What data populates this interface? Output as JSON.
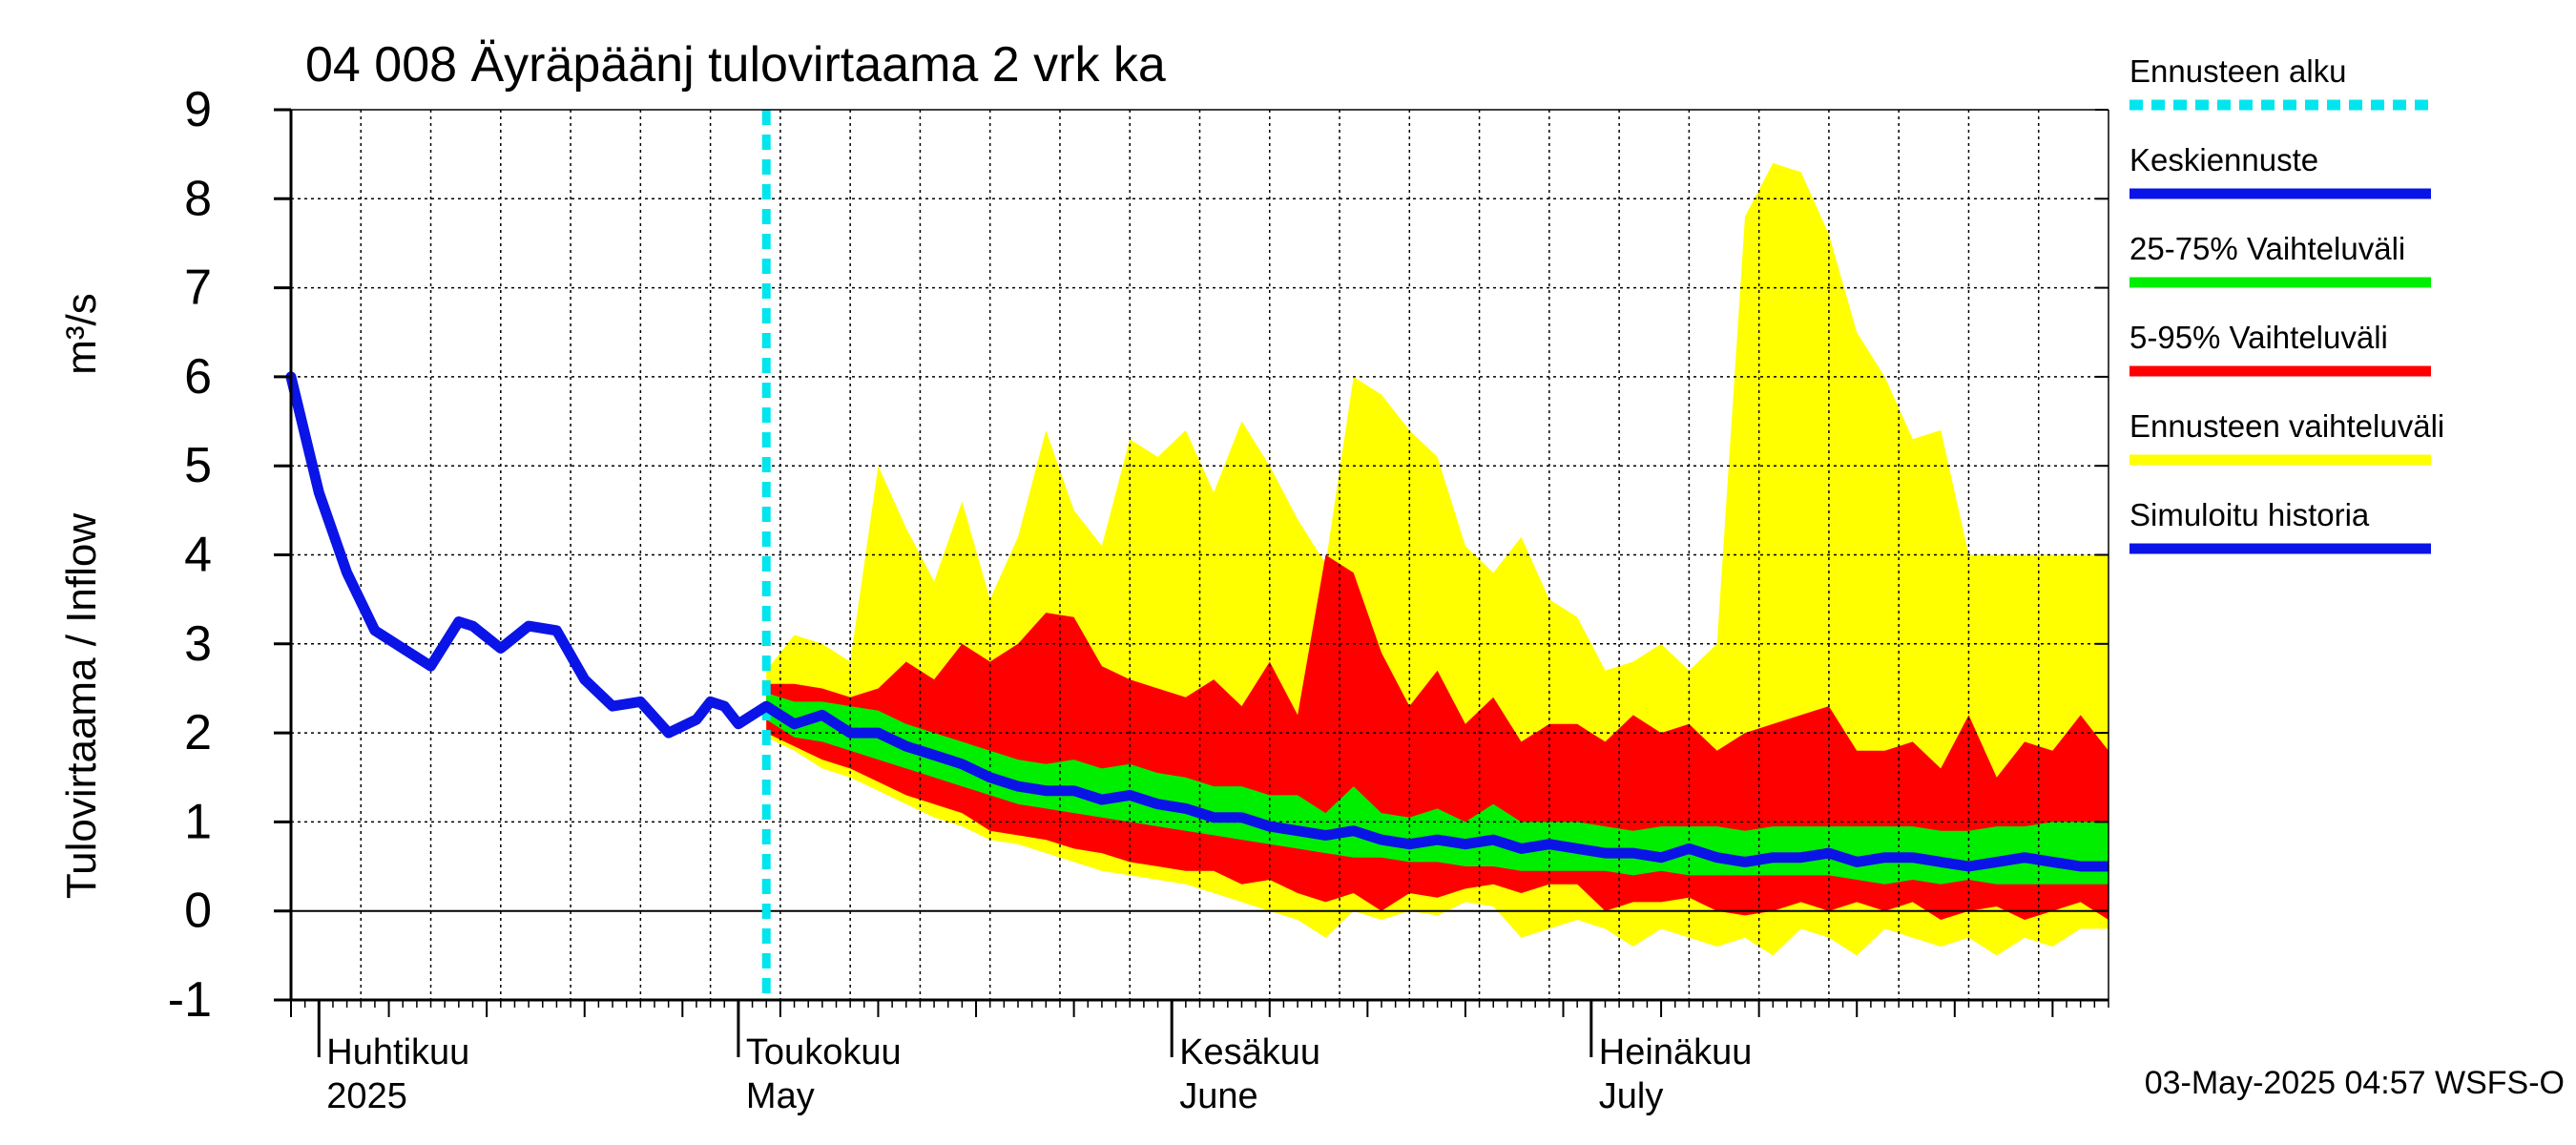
{
  "chart_data": {
    "type": "area",
    "title": "04 008 Äyräpäänj tulovirtaama 2 vrk ka",
    "ylabel": "Tulovirtaama / Inflow",
    "yunit": "m³/s",
    "ylim": [
      -1,
      9
    ],
    "yticks": [
      "-1",
      "0",
      "1",
      "2",
      "3",
      "4",
      "5",
      "6",
      "7",
      "8",
      "9"
    ],
    "x_start": "2025-03-30",
    "x_end": "2025-08-07",
    "grid": true,
    "month_labels": [
      {
        "fi": "Huhtikuu",
        "en": "2025",
        "date": "2025-04-01"
      },
      {
        "fi": "Toukokuu",
        "en": "May",
        "date": "2025-05-01"
      },
      {
        "fi": "Kesäkuu",
        "en": "June",
        "date": "2025-06-01"
      },
      {
        "fi": "Heinäkuu",
        "en": "July",
        "date": "2025-07-01"
      }
    ],
    "forecast_start": "2025-05-03",
    "legend_position": "right",
    "legend": [
      {
        "label": "Ennusteen alku",
        "color": "#00e5ee",
        "style": "dashed"
      },
      {
        "label": "Keskiennuste",
        "color": "#0a14e6",
        "style": "line"
      },
      {
        "label": "25-75% Vaihteluväli",
        "color": "#00ee00",
        "style": "line"
      },
      {
        "label": "5-95% Vaihteluväli",
        "color": "#ff0000",
        "style": "line"
      },
      {
        "label": "Ennusteen vaihteluväli",
        "color": "#ffff00",
        "style": "line"
      },
      {
        "label": "Simuloitu historia",
        "color": "#0a14e6",
        "style": "line"
      }
    ],
    "colors": {
      "history": "#0a14e6",
      "median": "#0a14e6",
      "band_25_75": "#00ee00",
      "band_5_95": "#ff0000",
      "band_full": "#ffff00",
      "forecast_start": "#00e5ee"
    },
    "history": {
      "x": [
        "2025-03-30",
        "2025-04-01",
        "2025-04-03",
        "2025-04-05",
        "2025-04-07",
        "2025-04-09",
        "2025-04-11",
        "2025-04-12",
        "2025-04-14",
        "2025-04-16",
        "2025-04-18",
        "2025-04-20",
        "2025-04-22",
        "2025-04-24",
        "2025-04-26",
        "2025-04-28",
        "2025-04-29",
        "2025-04-30",
        "2025-05-01",
        "2025-05-02",
        "2025-05-03"
      ],
      "y": [
        6.0,
        4.7,
        3.8,
        3.15,
        2.95,
        2.75,
        3.25,
        3.2,
        2.95,
        3.2,
        3.15,
        2.6,
        2.3,
        2.35,
        2.0,
        2.15,
        2.35,
        2.3,
        2.1,
        2.2,
        2.3
      ]
    },
    "forecast": {
      "x": [
        "2025-05-03",
        "2025-05-05",
        "2025-05-07",
        "2025-05-09",
        "2025-05-11",
        "2025-05-13",
        "2025-05-15",
        "2025-05-17",
        "2025-05-19",
        "2025-05-21",
        "2025-05-23",
        "2025-05-25",
        "2025-05-27",
        "2025-05-29",
        "2025-05-31",
        "2025-06-02",
        "2025-06-04",
        "2025-06-06",
        "2025-06-08",
        "2025-06-10",
        "2025-06-12",
        "2025-06-14",
        "2025-06-16",
        "2025-06-18",
        "2025-06-20",
        "2025-06-22",
        "2025-06-24",
        "2025-06-26",
        "2025-06-28",
        "2025-06-30",
        "2025-07-02",
        "2025-07-04",
        "2025-07-06",
        "2025-07-08",
        "2025-07-10",
        "2025-07-12",
        "2025-07-14",
        "2025-07-16",
        "2025-07-18",
        "2025-07-20",
        "2025-07-22",
        "2025-07-24",
        "2025-07-26",
        "2025-07-28",
        "2025-07-30",
        "2025-08-01",
        "2025-08-03",
        "2025-08-05",
        "2025-08-07"
      ],
      "median": [
        2.3,
        2.1,
        2.2,
        2.0,
        2.0,
        1.85,
        1.75,
        1.65,
        1.5,
        1.4,
        1.35,
        1.35,
        1.25,
        1.3,
        1.2,
        1.15,
        1.05,
        1.05,
        0.95,
        0.9,
        0.85,
        0.9,
        0.8,
        0.75,
        0.8,
        0.75,
        0.8,
        0.7,
        0.75,
        0.7,
        0.65,
        0.65,
        0.6,
        0.7,
        0.6,
        0.55,
        0.6,
        0.6,
        0.65,
        0.55,
        0.6,
        0.6,
        0.55,
        0.5,
        0.55,
        0.6,
        0.55,
        0.5,
        0.5
      ],
      "p25": [
        2.15,
        1.95,
        1.9,
        1.8,
        1.7,
        1.6,
        1.5,
        1.4,
        1.3,
        1.2,
        1.15,
        1.1,
        1.05,
        1.0,
        0.95,
        0.9,
        0.85,
        0.8,
        0.75,
        0.7,
        0.65,
        0.6,
        0.6,
        0.55,
        0.55,
        0.5,
        0.5,
        0.45,
        0.45,
        0.45,
        0.45,
        0.4,
        0.45,
        0.4,
        0.4,
        0.4,
        0.4,
        0.4,
        0.4,
        0.35,
        0.3,
        0.35,
        0.3,
        0.35,
        0.3,
        0.3,
        0.3,
        0.3,
        0.3
      ],
      "p75": [
        2.45,
        2.35,
        2.35,
        2.3,
        2.25,
        2.1,
        2.0,
        1.9,
        1.8,
        1.7,
        1.65,
        1.7,
        1.6,
        1.65,
        1.55,
        1.5,
        1.4,
        1.4,
        1.3,
        1.3,
        1.1,
        1.4,
        1.1,
        1.05,
        1.15,
        1.0,
        1.2,
        1.0,
        1.0,
        1.0,
        0.95,
        0.9,
        0.95,
        0.95,
        0.95,
        0.9,
        0.95,
        0.95,
        0.95,
        0.95,
        0.95,
        0.95,
        0.9,
        0.9,
        0.95,
        0.95,
        1.0,
        1.0,
        1.0
      ],
      "p5": [
        2.0,
        1.85,
        1.7,
        1.6,
        1.45,
        1.3,
        1.2,
        1.1,
        0.9,
        0.85,
        0.8,
        0.7,
        0.65,
        0.55,
        0.5,
        0.45,
        0.45,
        0.3,
        0.35,
        0.2,
        0.1,
        0.2,
        0.0,
        0.2,
        0.15,
        0.25,
        0.3,
        0.2,
        0.3,
        0.3,
        0.0,
        0.1,
        0.1,
        0.15,
        0.0,
        -0.05,
        0.0,
        0.1,
        0.0,
        0.1,
        0.0,
        0.1,
        -0.1,
        0.0,
        0.05,
        -0.1,
        0.0,
        0.1,
        -0.1
      ],
      "p95": [
        2.55,
        2.55,
        2.5,
        2.4,
        2.5,
        2.8,
        2.6,
        3.0,
        2.8,
        3.0,
        3.35,
        3.3,
        2.75,
        2.6,
        2.5,
        2.4,
        2.6,
        2.3,
        2.8,
        2.2,
        4.0,
        3.8,
        2.9,
        2.3,
        2.7,
        2.1,
        2.4,
        1.9,
        2.1,
        2.1,
        1.9,
        2.2,
        2.0,
        2.1,
        1.8,
        2.0,
        2.1,
        2.2,
        2.3,
        1.8,
        1.8,
        1.9,
        1.6,
        2.2,
        1.5,
        1.9,
        1.8,
        2.2,
        1.8
      ],
      "min": [
        1.95,
        1.8,
        1.6,
        1.5,
        1.35,
        1.2,
        1.05,
        0.95,
        0.8,
        0.75,
        0.65,
        0.55,
        0.45,
        0.4,
        0.35,
        0.3,
        0.2,
        0.1,
        0.0,
        -0.1,
        -0.3,
        0.0,
        -0.1,
        0.0,
        -0.05,
        0.1,
        0.05,
        -0.3,
        -0.2,
        -0.1,
        -0.2,
        -0.4,
        -0.2,
        -0.3,
        -0.4,
        -0.3,
        -0.5,
        -0.2,
        -0.3,
        -0.5,
        -0.2,
        -0.3,
        -0.4,
        -0.3,
        -0.5,
        -0.3,
        -0.4,
        -0.2,
        -0.2
      ],
      "max": [
        2.7,
        3.1,
        3.0,
        2.8,
        5.0,
        4.3,
        3.7,
        4.6,
        3.5,
        4.2,
        5.4,
        4.5,
        4.1,
        5.3,
        5.1,
        5.4,
        4.7,
        5.5,
        5.0,
        4.4,
        3.9,
        6.0,
        5.8,
        5.4,
        5.1,
        4.1,
        3.8,
        4.2,
        3.5,
        3.3,
        2.7,
        2.8,
        3.0,
        2.7,
        3.0,
        7.8,
        8.4,
        8.3,
        7.6,
        6.5,
        6.0,
        5.3,
        5.4,
        4.0,
        4.0,
        4.0,
        4.0,
        4.0,
        4.0
      ]
    }
  },
  "timestamp": "03-May-2025 04:57 WSFS-O"
}
